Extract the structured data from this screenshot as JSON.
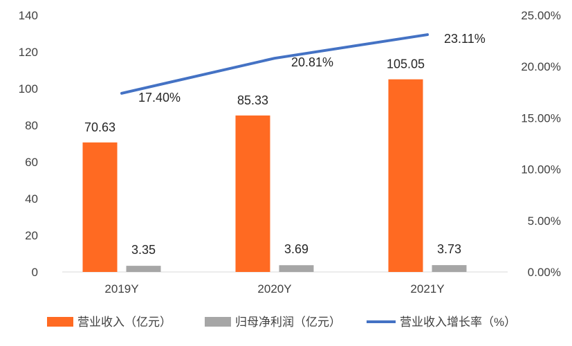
{
  "chart_data": {
    "type": "bar",
    "categories": [
      "2019Y",
      "2020Y",
      "2021Y"
    ],
    "series": [
      {
        "name": "营业收入（亿元）",
        "type": "bar",
        "axis": "left",
        "color": "#FF6A22",
        "values": [
          70.63,
          85.33,
          105.05
        ],
        "labels": [
          "70.63",
          "85.33",
          "105.05"
        ]
      },
      {
        "name": "归母净利润（亿元）",
        "type": "bar",
        "axis": "left",
        "color": "#A6A6A6",
        "values": [
          3.35,
          3.69,
          3.73
        ],
        "labels": [
          "3.35",
          "3.69",
          "3.73"
        ]
      },
      {
        "name": "营业收入增长率（%）",
        "type": "line",
        "axis": "right",
        "color": "#4472C4",
        "values": [
          17.4,
          20.81,
          23.11
        ],
        "labels": [
          "17.40%",
          "20.81%",
          "23.11%"
        ]
      }
    ],
    "y_left": {
      "min": 0,
      "max": 140,
      "ticks": [
        "0",
        "20",
        "40",
        "60",
        "80",
        "100",
        "120",
        "140"
      ]
    },
    "y_right": {
      "min": 0,
      "max": 25,
      "ticks": [
        "0.00%",
        "5.00%",
        "10.00%",
        "15.00%",
        "20.00%",
        "25.00%"
      ]
    },
    "grid": false,
    "legend_position": "bottom"
  }
}
